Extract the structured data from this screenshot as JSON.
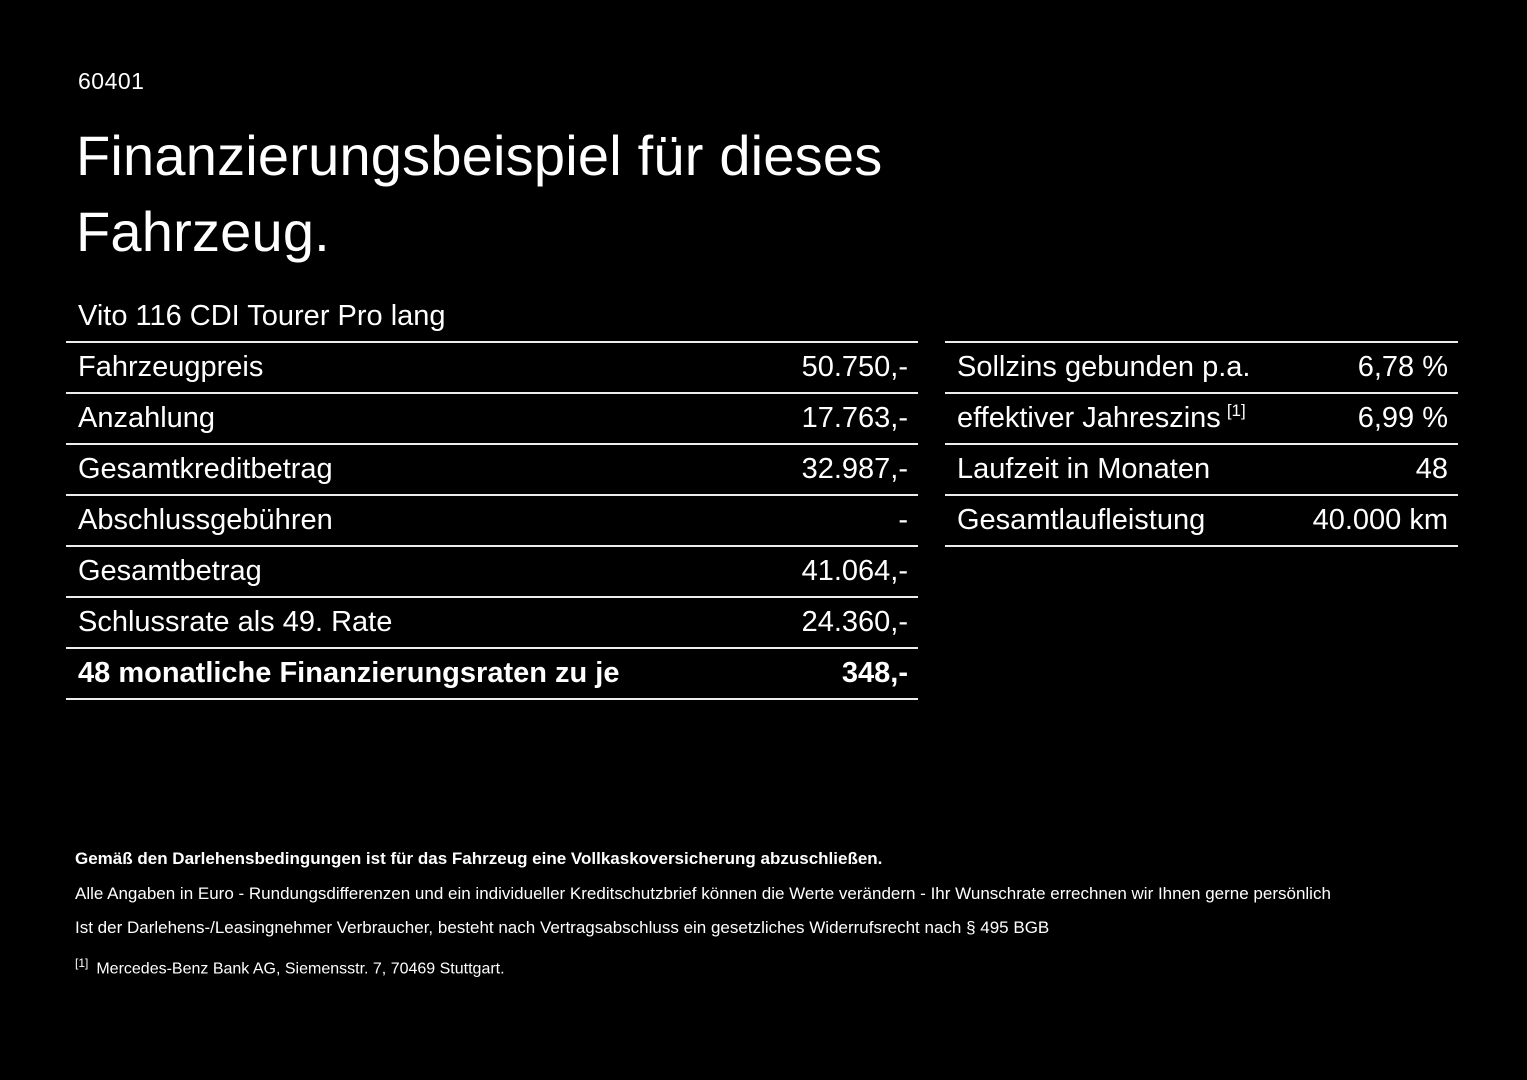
{
  "colors": {
    "background": "#000000",
    "text": "#ffffff",
    "divider": "#ededed"
  },
  "page": {
    "code": "60401",
    "title_line1": "Finanzierungsbeispiel für dieses",
    "title_line2": "Fahrzeug.",
    "vehicle": "Vito 116 CDI Tourer Pro lang"
  },
  "left_table": {
    "rows": [
      {
        "label": "Fahrzeugpreis",
        "value": "50.750,-"
      },
      {
        "label": "Anzahlung",
        "value": "17.763,-"
      },
      {
        "label": "Gesamtkreditbetrag",
        "value": "32.987,-"
      },
      {
        "label": "Abschlussgebühren",
        "value": "-"
      },
      {
        "label": "Gesamtbetrag",
        "value": "41.064,-"
      },
      {
        "label": "Schlussrate als 49. Rate",
        "value": "24.360,-"
      },
      {
        "label": "48 monatliche Finanzierungsraten zu je",
        "value": "348,-"
      }
    ]
  },
  "right_table": {
    "rows": [
      {
        "label": "Sollzins gebunden p.a.",
        "sup": "",
        "value": "6,78 %"
      },
      {
        "label": "effektiver Jahreszins",
        "sup": "[1]",
        "value": "6,99 %"
      },
      {
        "label": "Laufzeit in Monaten",
        "sup": "",
        "value": "48"
      },
      {
        "label": "Gesamtlaufleistung",
        "sup": "",
        "value": "40.000 km"
      }
    ]
  },
  "footer": {
    "bold_note": "Gemäß den Darlehensbedingungen ist für das Fahrzeug eine Vollkaskoversicherung abzuschließen.",
    "note1": "Alle Angaben in Euro - Rundungsdifferenzen und ein individueller Kreditschutzbrief können die Werte verändern - Ihr Wunschrate errechnen wir Ihnen gerne persönlich",
    "note2": "Ist der Darlehens-/Leasingnehmer Verbraucher, besteht nach Vertragsabschluss ein gesetzliches Widerrufsrecht nach § 495 BGB",
    "footnote_marker": "[1]",
    "footnote_text": "Mercedes-Benz Bank AG, Siemensstr. 7, 70469 Stuttgart."
  }
}
